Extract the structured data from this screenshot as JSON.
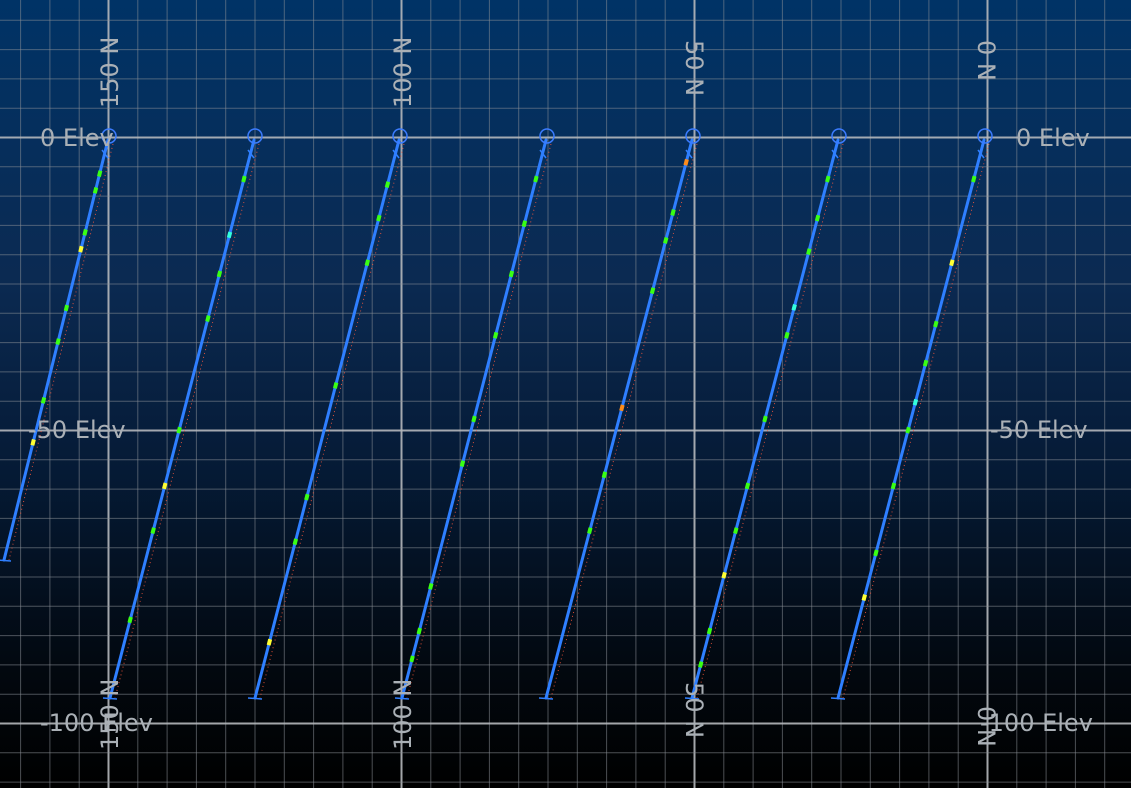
{
  "view": {
    "elevation_labels": [
      "0 Elev",
      "-50 Elev",
      "-100 Elev"
    ],
    "northing_labels": [
      "150 N",
      "100 N",
      "50 N",
      "0 N"
    ]
  },
  "drillholes": [
    {
      "id": 1,
      "samples": [
        {
          "t": 0.08,
          "c": "#39ff14"
        },
        {
          "t": 0.12,
          "c": "#39ff14"
        },
        {
          "t": 0.22,
          "c": "#39ff14"
        },
        {
          "t": 0.26,
          "c": "#ffff33"
        },
        {
          "t": 0.4,
          "c": "#39ff14"
        },
        {
          "t": 0.48,
          "c": "#39ff14"
        },
        {
          "t": 0.62,
          "c": "#39ff14"
        },
        {
          "t": 0.72,
          "c": "#ffff33"
        }
      ]
    },
    {
      "id": 2,
      "samples": [
        {
          "t": 0.07,
          "c": "#39ff14"
        },
        {
          "t": 0.17,
          "c": "#33ffdd"
        },
        {
          "t": 0.24,
          "c": "#39ff14"
        },
        {
          "t": 0.32,
          "c": "#39ff14"
        },
        {
          "t": 0.52,
          "c": "#39ff14"
        },
        {
          "t": 0.62,
          "c": "#ffff33"
        },
        {
          "t": 0.7,
          "c": "#39ff14"
        },
        {
          "t": 0.86,
          "c": "#39ff14"
        }
      ]
    },
    {
      "id": 3,
      "samples": [
        {
          "t": 0.08,
          "c": "#39ff14"
        },
        {
          "t": 0.14,
          "c": "#39ff14"
        },
        {
          "t": 0.22,
          "c": "#39ff14"
        },
        {
          "t": 0.44,
          "c": "#39ff14"
        },
        {
          "t": 0.64,
          "c": "#39ff14"
        },
        {
          "t": 0.72,
          "c": "#39ff14"
        },
        {
          "t": 0.9,
          "c": "#ffff33"
        }
      ]
    },
    {
      "id": 4,
      "samples": [
        {
          "t": 0.07,
          "c": "#39ff14"
        },
        {
          "t": 0.15,
          "c": "#39ff14"
        },
        {
          "t": 0.24,
          "c": "#39ff14"
        },
        {
          "t": 0.35,
          "c": "#39ff14"
        },
        {
          "t": 0.5,
          "c": "#39ff14"
        },
        {
          "t": 0.58,
          "c": "#39ff14"
        },
        {
          "t": 0.8,
          "c": "#39ff14"
        },
        {
          "t": 0.88,
          "c": "#39ff14"
        },
        {
          "t": 0.93,
          "c": "#39ff14"
        }
      ]
    },
    {
      "id": 5,
      "samples": [
        {
          "t": 0.04,
          "c": "#ff8c1a"
        },
        {
          "t": 0.13,
          "c": "#39ff14"
        },
        {
          "t": 0.18,
          "c": "#39ff14"
        },
        {
          "t": 0.27,
          "c": "#39ff14"
        },
        {
          "t": 0.48,
          "c": "#ff8c1a"
        },
        {
          "t": 0.6,
          "c": "#39ff14"
        },
        {
          "t": 0.7,
          "c": "#39ff14"
        }
      ]
    },
    {
      "id": 6,
      "samples": [
        {
          "t": 0.07,
          "c": "#39ff14"
        },
        {
          "t": 0.14,
          "c": "#39ff14"
        },
        {
          "t": 0.2,
          "c": "#39ff14"
        },
        {
          "t": 0.3,
          "c": "#33ffdd"
        },
        {
          "t": 0.35,
          "c": "#39ff14"
        },
        {
          "t": 0.5,
          "c": "#39ff14"
        },
        {
          "t": 0.62,
          "c": "#39ff14"
        },
        {
          "t": 0.7,
          "c": "#39ff14"
        },
        {
          "t": 0.78,
          "c": "#ffff33"
        },
        {
          "t": 0.88,
          "c": "#39ff14"
        },
        {
          "t": 0.94,
          "c": "#39ff14"
        }
      ]
    },
    {
      "id": 7,
      "samples": [
        {
          "t": 0.07,
          "c": "#39ff14"
        },
        {
          "t": 0.22,
          "c": "#ffff33"
        },
        {
          "t": 0.33,
          "c": "#39ff14"
        },
        {
          "t": 0.4,
          "c": "#39ff14"
        },
        {
          "t": 0.47,
          "c": "#33ffdd"
        },
        {
          "t": 0.52,
          "c": "#39ff14"
        },
        {
          "t": 0.62,
          "c": "#39ff14"
        },
        {
          "t": 0.74,
          "c": "#39ff14"
        },
        {
          "t": 0.82,
          "c": "#ffff33"
        }
      ]
    }
  ]
}
